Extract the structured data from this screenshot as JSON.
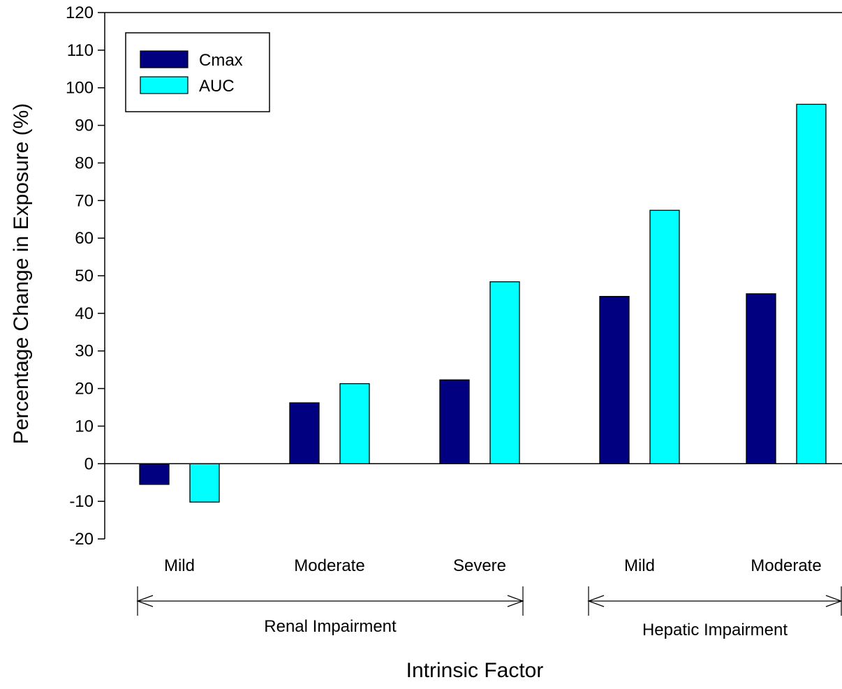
{
  "chart_data": {
    "type": "bar",
    "title": "",
    "xlabel": "Intrinsic Factor",
    "ylabel": "Percentage Change in Exposure (%)",
    "ylim": [
      -20,
      120
    ],
    "yticks": [
      -20,
      -10,
      0,
      10,
      20,
      30,
      40,
      50,
      60,
      70,
      80,
      90,
      100,
      110,
      120
    ],
    "ytick_labels": [
      "-20",
      "-10",
      "0",
      "10",
      "20",
      "30",
      "40",
      "50",
      "60",
      "70",
      "80",
      "90",
      "100",
      "110",
      "120"
    ],
    "categories": [
      "Mild",
      "Moderate",
      "Severe",
      "Mild",
      "Moderate"
    ],
    "groups": [
      {
        "label": "Renal Impairment",
        "categories": [
          0,
          1,
          2
        ]
      },
      {
        "label": "Hepatic Impairment",
        "categories": [
          3,
          4
        ]
      }
    ],
    "series": [
      {
        "name": "Cmax",
        "color": "#000080",
        "values": [
          -5.5,
          16.2,
          22.3,
          44.5,
          45.2
        ]
      },
      {
        "name": "AUC",
        "color": "#00FFFF",
        "values": [
          -10.2,
          21.3,
          48.4,
          67.4,
          95.6
        ]
      }
    ],
    "legend": "top-left",
    "grid": false
  }
}
